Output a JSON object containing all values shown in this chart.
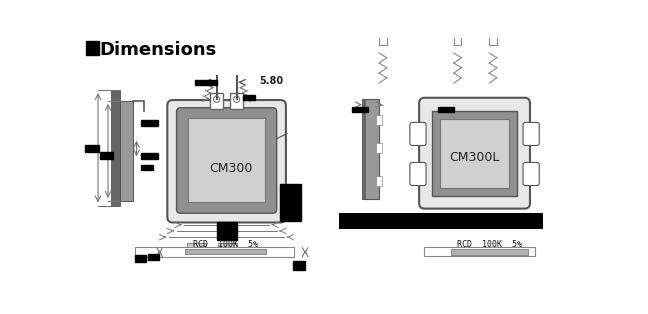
{
  "title": "Dimensions",
  "cm300_label": "CM300",
  "cm300l_label": "CM300L",
  "rcd_label_left": "RCD  100K  5%",
  "rcd_label_right": "RCD  100K  5%",
  "dim_label": "5.80",
  "bg_color": "#ffffff",
  "black": "#000000",
  "dark_gray": "#555555",
  "mid_gray": "#888888",
  "light_gray": "#bbbbbb",
  "body_outer": "#e8e8e8",
  "body_inner_dark": "#909090",
  "body_inner_light": "#d0d0d0",
  "heatsink_dark": "#666666",
  "heatsink_mid": "#999999",
  "label_bg": "#b0b0b0",
  "arrow_color": "#777777",
  "wire_color": "#888888"
}
